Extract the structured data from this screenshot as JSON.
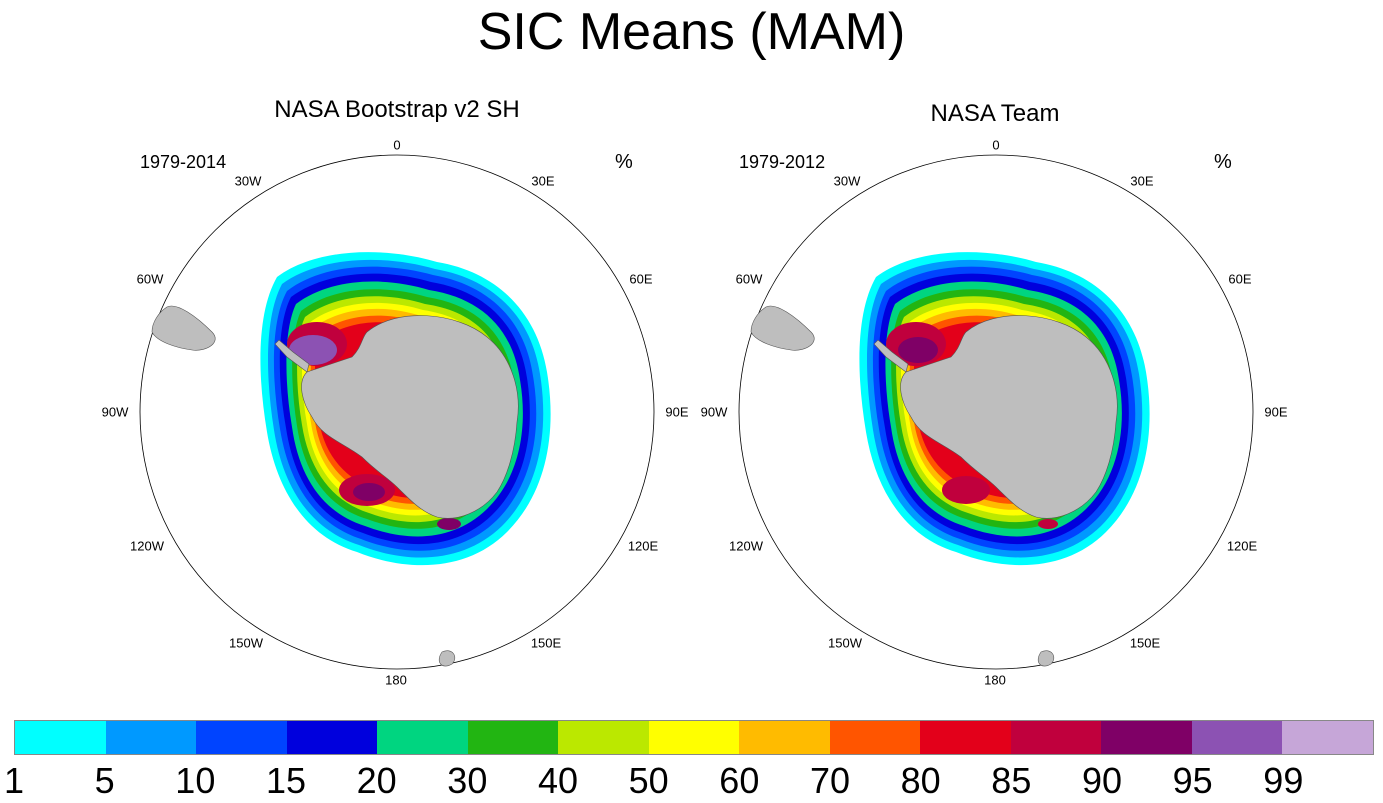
{
  "title": "SIC Means (MAM)",
  "units": "%",
  "panels": [
    {
      "title": "NASA Bootstrap v2 SH",
      "period": "1979-2014"
    },
    {
      "title": "NASA Team",
      "period": "1979-2012"
    }
  ],
  "longitude_labels": [
    "0",
    "30E",
    "60E",
    "90E",
    "120E",
    "150E",
    "180",
    "150W",
    "120W",
    "90W",
    "60W",
    "30W"
  ],
  "colorbar": {
    "colors": [
      "#00ffff",
      "#0099ff",
      "#0044ff",
      "#0000dd",
      "#00d580",
      "#22b512",
      "#bbe800",
      "#ffff00",
      "#ffbb00",
      "#ff5500",
      "#e3001a",
      "#c0003d",
      "#7f0066",
      "#8c52b3",
      "#c6a6d8"
    ],
    "ticks": [
      "1",
      "5",
      "10",
      "15",
      "20",
      "30",
      "40",
      "50",
      "60",
      "70",
      "80",
      "85",
      "90",
      "95",
      "99"
    ]
  },
  "land_color": "#bebebe"
}
